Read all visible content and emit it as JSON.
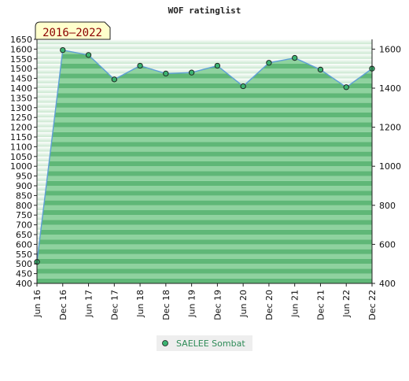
{
  "chart_data": {
    "type": "area",
    "title": "WOF ratinglist",
    "badge": "2016–2022",
    "x_labels": [
      "Jun 16",
      "Dec 16",
      "Jun 17",
      "Dec 17",
      "Jun 18",
      "Dec 18",
      "Jun 19",
      "Dec 19",
      "Jun 20",
      "Dec 20",
      "Jun 21",
      "Dec 21",
      "Jun 22",
      "Dec 22"
    ],
    "series": [
      {
        "name": "SAELEE Sombat",
        "values": [
          510,
          1595,
          1570,
          1445,
          1515,
          1475,
          1480,
          1515,
          1410,
          1530,
          1555,
          1495,
          1405,
          1500
        ]
      }
    ],
    "y_left": {
      "min": 400,
      "max": 1650,
      "ticks": [
        1650,
        1600,
        1550,
        1500,
        1450,
        1400,
        1350,
        1300,
        1250,
        1200,
        1150,
        1100,
        1050,
        1000,
        950,
        900,
        850,
        800,
        750,
        700,
        650,
        600,
        550,
        500,
        450,
        400
      ]
    },
    "y_right": {
      "min": 400,
      "max": 1650,
      "ticks": [
        1600,
        1400,
        1200,
        1000,
        800,
        600,
        400
      ]
    },
    "legend_placement": "bottom-center",
    "colors": {
      "line": "#5f9fd7",
      "marker": "#3cb371",
      "fill_top": "#5fb777",
      "fill_bottom": "#8fd29f",
      "legend_text": "#2e8b57",
      "badge_bg": "#ffffcc"
    }
  }
}
